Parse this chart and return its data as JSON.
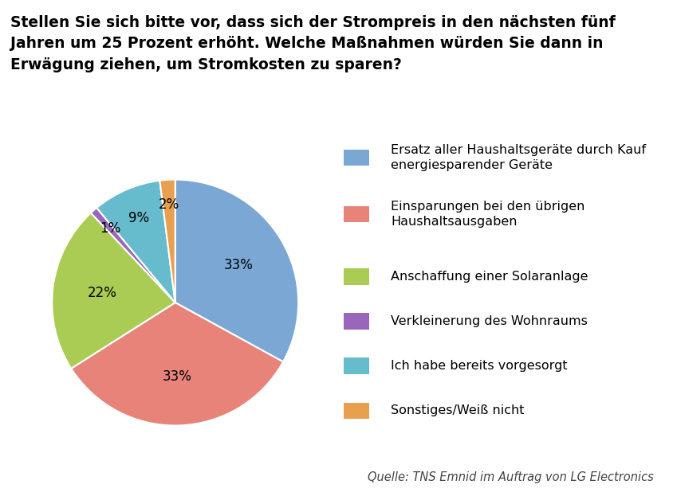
{
  "title": "Stellen Sie sich bitte vor, dass sich der Strompreis in den nächsten fünf\nJahren um 25 Prozent erhöht. Welche Maßnahmen würden Sie dann in\nErwägung ziehen, um Stromkosten zu sparen?",
  "slices": [
    33,
    33,
    22,
    1,
    9,
    2
  ],
  "labels": [
    "33%",
    "33%",
    "22%",
    "1%",
    "9%",
    "2%"
  ],
  "colors": [
    "#7BA7D4",
    "#E8837A",
    "#AACC55",
    "#9966BB",
    "#66BBCC",
    "#E8A050"
  ],
  "legend_labels": [
    "Ersatz aller Haushaltsgeräte durch Kauf\nenergiesparender Geräte",
    "Einsparungen bei den übrigen\nHaushaltsausgaben",
    "Anschaffung einer Solaranlage",
    "Verkleinerung des Wohnraums",
    "Ich habe bereits vorgesorgt",
    "Sonstiges/Weiß nicht"
  ],
  "source_text": "Quelle: TNS Emnid im Auftrag von LG Electronics",
  "background_color": "#FFFFFF",
  "startangle": 90,
  "title_fontsize": 13.5,
  "label_fontsize": 12,
  "legend_fontsize": 11.5,
  "source_fontsize": 10.5
}
